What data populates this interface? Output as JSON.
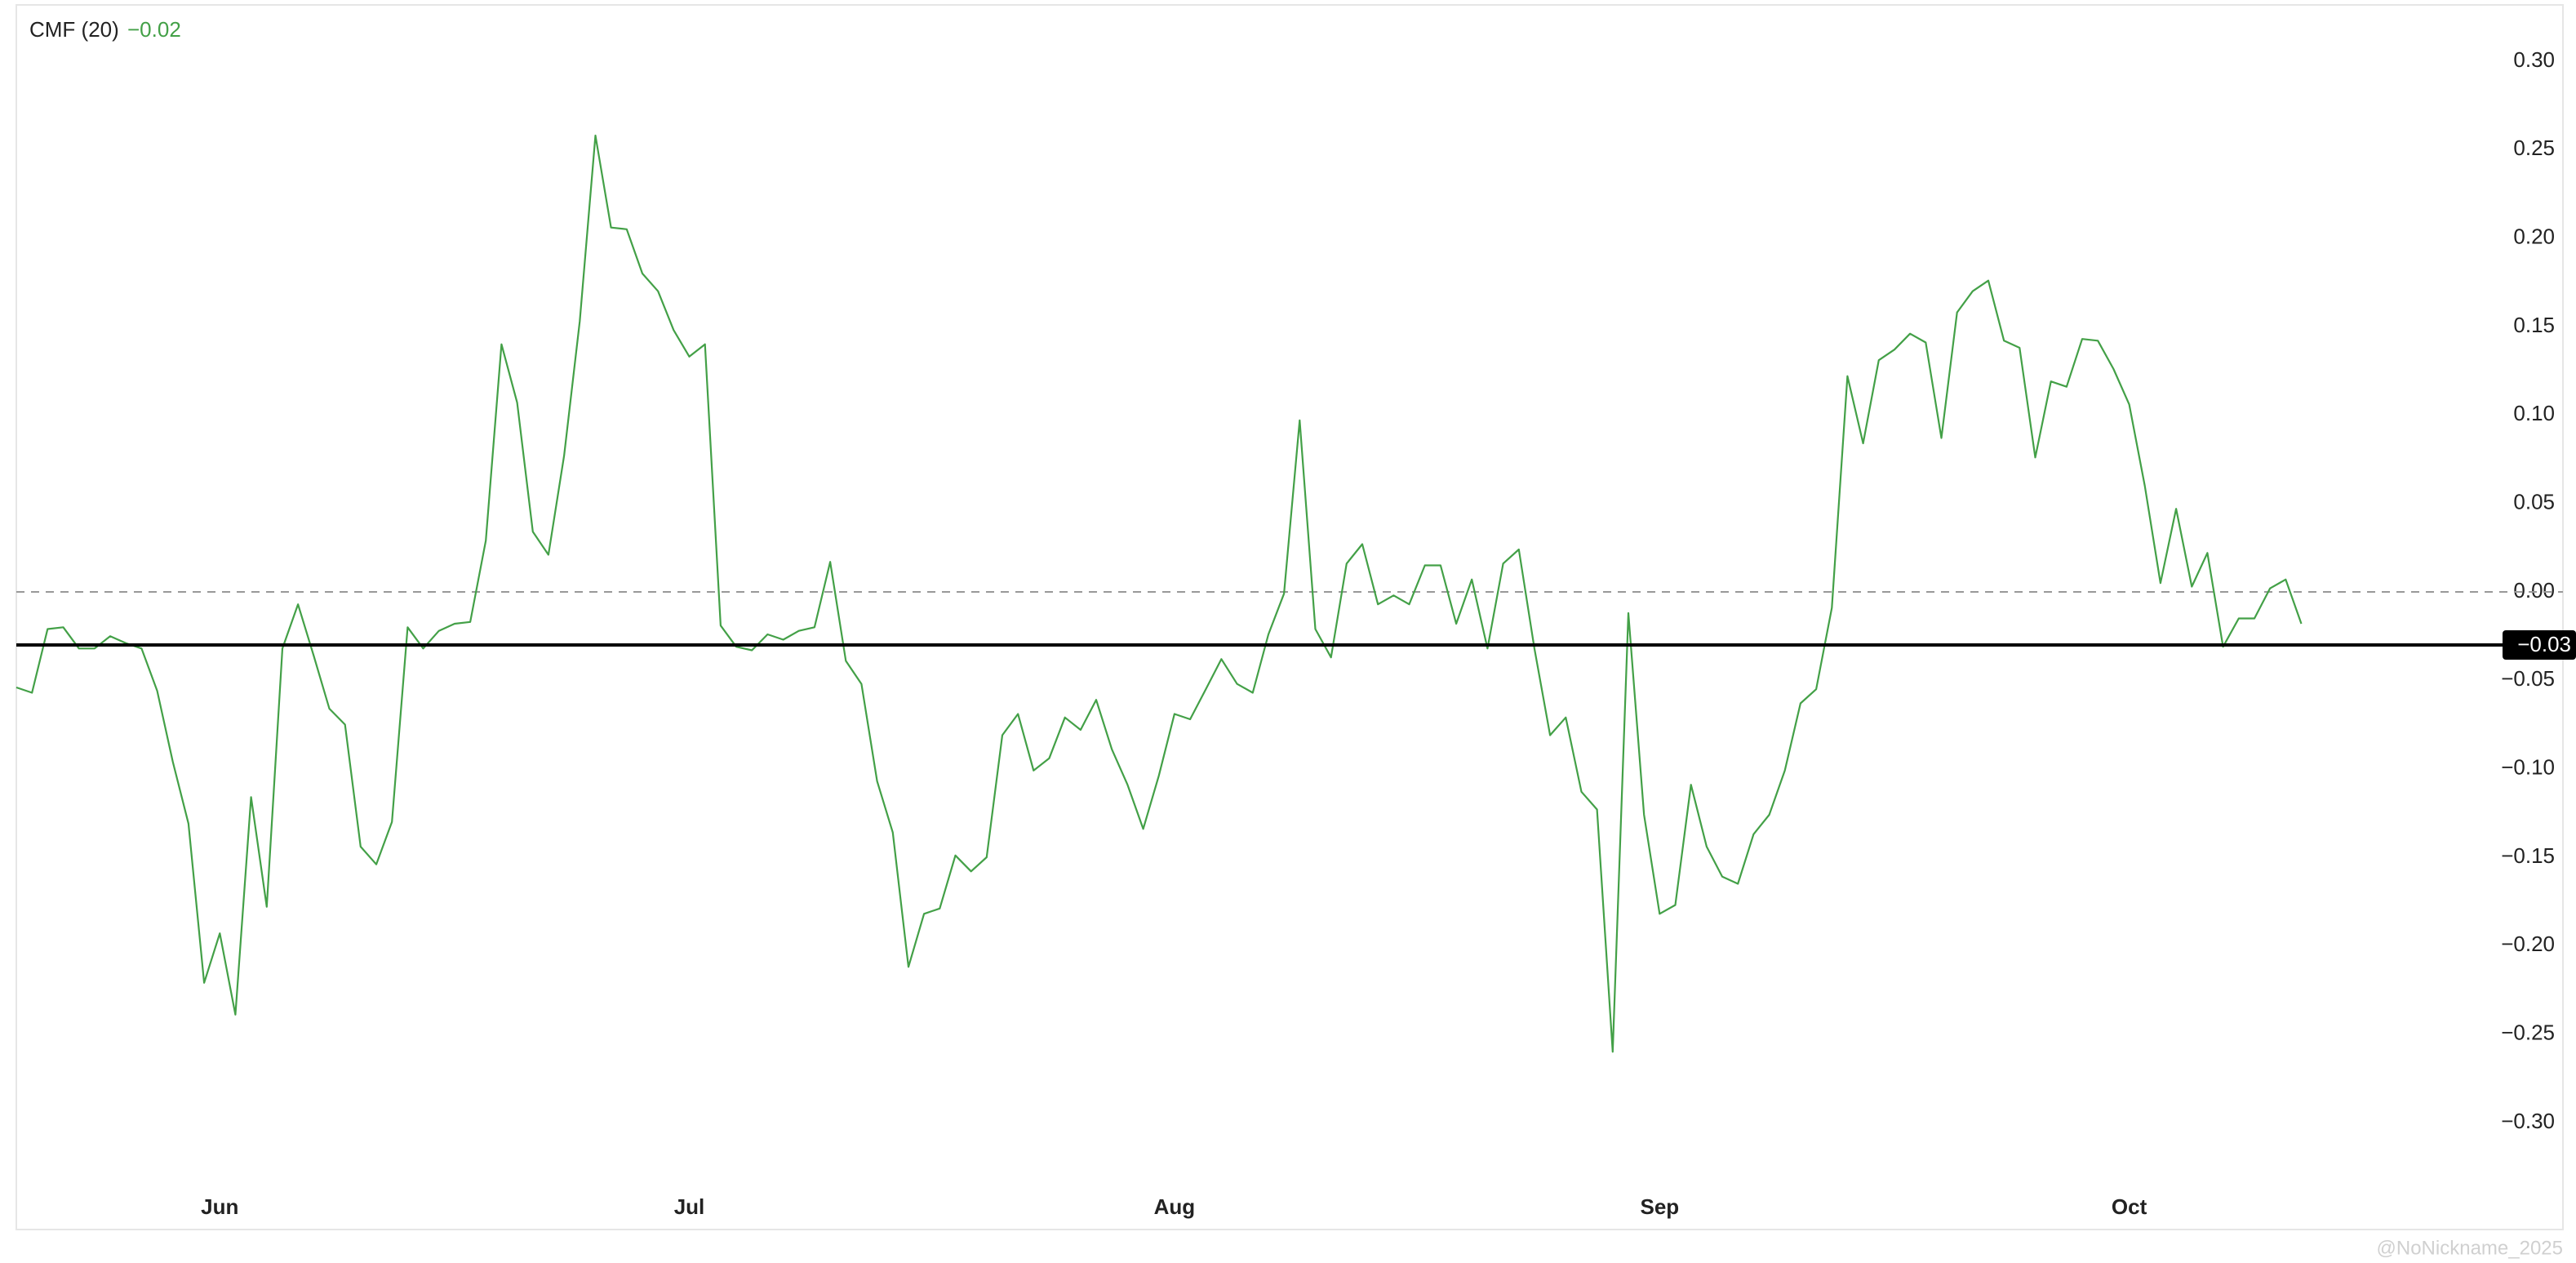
{
  "chart_data": {
    "type": "line",
    "title": "CMF (20)",
    "current_label": "−0.02",
    "watermark": "@NoNickname_2025",
    "series": [
      {
        "name": "CMF (20)",
        "color": "#43a047",
        "values": [
          -0.054,
          -0.057,
          -0.021,
          -0.02,
          -0.032,
          -0.032,
          -0.025,
          -0.029,
          -0.032,
          -0.056,
          -0.096,
          -0.131,
          -0.221,
          -0.193,
          -0.239,
          -0.116,
          -0.178,
          -0.032,
          -0.007,
          -0.036,
          -0.066,
          -0.075,
          -0.144,
          -0.154,
          -0.13,
          -0.02,
          -0.032,
          -0.022,
          -0.018,
          -0.017,
          0.029,
          0.14,
          0.107,
          0.034,
          0.021,
          0.077,
          0.153,
          0.258,
          0.206,
          0.205,
          0.18,
          0.17,
          0.148,
          0.133,
          0.14,
          -0.019,
          -0.031,
          -0.033,
          -0.024,
          -0.027,
          -0.022,
          -0.02,
          0.017,
          -0.039,
          -0.052,
          -0.107,
          -0.136,
          -0.212,
          -0.182,
          -0.179,
          -0.149,
          -0.158,
          -0.15,
          -0.081,
          -0.069,
          -0.101,
          -0.094,
          -0.071,
          -0.078,
          -0.061,
          -0.089,
          -0.109,
          -0.134,
          -0.104,
          -0.069,
          -0.072,
          -0.055,
          -0.038,
          -0.052,
          -0.057,
          -0.024,
          -0.001,
          0.097,
          -0.021,
          -0.037,
          0.016,
          0.027,
          -0.007,
          -0.002,
          -0.007,
          0.015,
          0.015,
          -0.018,
          0.007,
          -0.032,
          0.016,
          0.024,
          -0.032,
          -0.081,
          -0.071,
          -0.113,
          -0.123,
          -0.26,
          -0.012,
          -0.126,
          -0.182,
          -0.177,
          -0.109,
          -0.144,
          -0.161,
          -0.165,
          -0.137,
          -0.126,
          -0.101,
          -0.063,
          -0.055,
          -0.009,
          0.122,
          0.084,
          0.131,
          0.137,
          0.146,
          0.141,
          0.087,
          0.158,
          0.17,
          0.176,
          0.142,
          0.138,
          0.076,
          0.119,
          0.116,
          0.143,
          0.142,
          0.126,
          0.106,
          0.06,
          0.005,
          0.047,
          0.003,
          0.022,
          -0.031,
          -0.015,
          -0.015,
          0.002,
          0.007,
          -0.018
        ]
      }
    ],
    "xlim": [
      0,
      157.5
    ],
    "xticks": [
      {
        "value": 13,
        "label": "Jun"
      },
      {
        "value": 43,
        "label": "Jul"
      },
      {
        "value": 74,
        "label": "Aug"
      },
      {
        "value": 105,
        "label": "Sep"
      },
      {
        "value": 135,
        "label": "Oct"
      }
    ],
    "ylim": [
      -0.36,
      0.33
    ],
    "yticks": [
      {
        "value": 0.3,
        "label": "0.30"
      },
      {
        "value": 0.25,
        "label": "0.25"
      },
      {
        "value": 0.2,
        "label": "0.20"
      },
      {
        "value": 0.15,
        "label": "0.15"
      },
      {
        "value": 0.1,
        "label": "0.10"
      },
      {
        "value": 0.05,
        "label": "0.05"
      },
      {
        "value": 0,
        "label": "0.00"
      },
      {
        "value": -0.05,
        "label": "−0.05"
      },
      {
        "value": -0.1,
        "label": "−0.10"
      },
      {
        "value": -0.15,
        "label": "−0.15"
      },
      {
        "value": -0.2,
        "label": "−0.20"
      },
      {
        "value": -0.25,
        "label": "−0.25"
      },
      {
        "value": -0.3,
        "label": "−0.30"
      }
    ],
    "baseline": 0,
    "hline": {
      "value": -0.03,
      "label": "−0.03"
    },
    "grid": false
  }
}
